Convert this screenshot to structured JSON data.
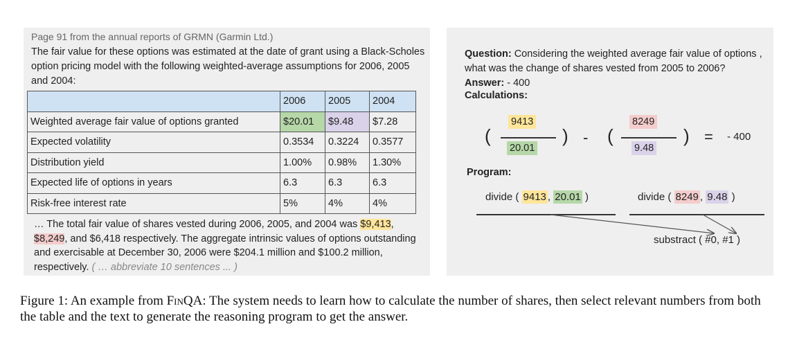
{
  "left": {
    "source": "Page 91 from the annual reports of GRMN (Garmin Ltd.)",
    "intro": "The fair value for these options was estimated at the date of grant using a Black-Scholes option pricing model with the following weighted-average assumptions for 2006, 2005 and 2004:",
    "table": {
      "header": [
        "",
        "2006",
        "2005",
        "2004"
      ],
      "rows": [
        [
          "Weighted average fair value of options granted",
          "$20.01",
          "$9.48",
          "$7.28"
        ],
        [
          "Expected volatility",
          "0.3534",
          "0.3224",
          "0.3577"
        ],
        [
          "Distribution yield",
          "1.00%",
          "0.98%",
          "1.30%"
        ],
        [
          "Expected life of options in years",
          "6.3",
          "6.3",
          "6.3"
        ],
        [
          "Risk-free interest rate",
          "5%",
          "4%",
          "4%"
        ]
      ]
    },
    "passage": {
      "p1": "… The total fair value of shares vested during 2006, 2005, and 2004 was ",
      "v1": "$9,413",
      "p2": ",",
      "v2": "$8,249",
      "p3": ", and $6,418 respectively. The aggregate intrinsic values of options outstanding and exercisable at December 30, 2006 were $204.1 million and $100.2 million, respectively. ",
      "abbrev": "( … abbreviate 10 sentences ... )"
    }
  },
  "right": {
    "question_label": "Question:",
    "question": " Considering the weighted average fair value of options , what was the change of shares vested from 2005 to 2006?",
    "answer_label": "Answer:",
    "answer": " - 400",
    "calc_label": "Calculations:",
    "calc": {
      "open1": "(",
      "num1": "9413",
      "den1": "20.01",
      "close1": ")",
      "minus": "-",
      "open2": "(",
      "num2": "8249",
      "den2": "9.48",
      "close2": ")",
      "equals": "=",
      "result": "- 400"
    },
    "program_label": "Program:",
    "step1": {
      "pre": "divide ( ",
      "a": "9413",
      "sep": ", ",
      "b": "20.01",
      "post": " )"
    },
    "step2": {
      "pre": "divide ( ",
      "a": "8249",
      "sep": ", ",
      "b": "9.48",
      "post": " )"
    },
    "step3": "substract ( #0, #1 )"
  },
  "caption": {
    "prefix": "Figure 1:  An example from ",
    "name": "FinQA",
    "text": ": The system needs to learn how to calculate the number of shares, then select relevant numbers from both the table and the text to generate the reasoning program to get the answer."
  },
  "colors": {
    "panel": "#efefef",
    "table_header": "#cfe2f3",
    "highlight_green": "#b6d7a8",
    "highlight_purple": "#d9d2e9",
    "highlight_yellow": "#ffe599",
    "highlight_red": "#f4cccc"
  }
}
